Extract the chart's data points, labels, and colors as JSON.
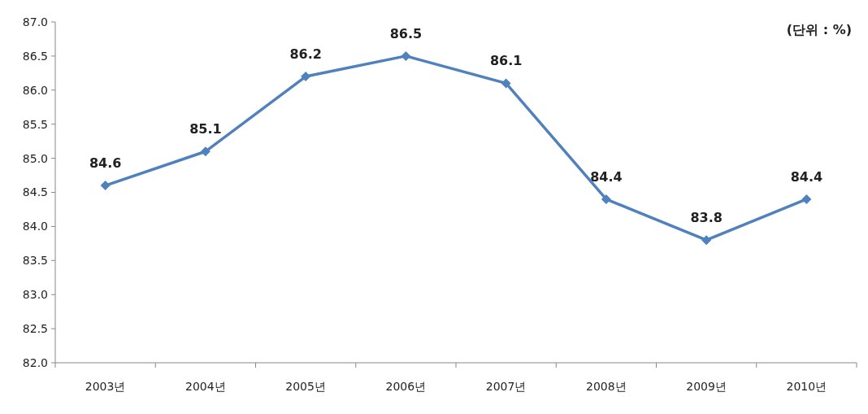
{
  "chart_data": {
    "type": "line",
    "categories": [
      "2003년",
      "2004년",
      "2005년",
      "2006년",
      "2007년",
      "2008년",
      "2009년",
      "2010년"
    ],
    "series": [
      {
        "color": "#4f81bd",
        "values": [
          84.6,
          85.1,
          86.2,
          86.5,
          86.1,
          84.4,
          83.8,
          84.4
        ]
      }
    ],
    "ylim": [
      82,
      87
    ],
    "yticks": [
      {
        "value": 82,
        "label": "82.0"
      },
      {
        "value": 82.5,
        "label": "82.5"
      },
      {
        "value": 83,
        "label": "83.0"
      },
      {
        "value": 83.5,
        "label": "83.5"
      },
      {
        "value": 84,
        "label": "84.0"
      },
      {
        "value": 84.5,
        "label": "84.5"
      },
      {
        "value": 85,
        "label": "85.0"
      },
      {
        "value": 85.5,
        "label": "85.5"
      },
      {
        "value": 86,
        "label": "86.0"
      },
      {
        "value": 86.5,
        "label": "86.5"
      },
      {
        "value": 87,
        "label": "87.0"
      }
    ],
    "annotations": [
      "(단위 : %)"
    ],
    "marker": "diamond",
    "line_style": "solid",
    "data_labels": true,
    "grid": false
  }
}
